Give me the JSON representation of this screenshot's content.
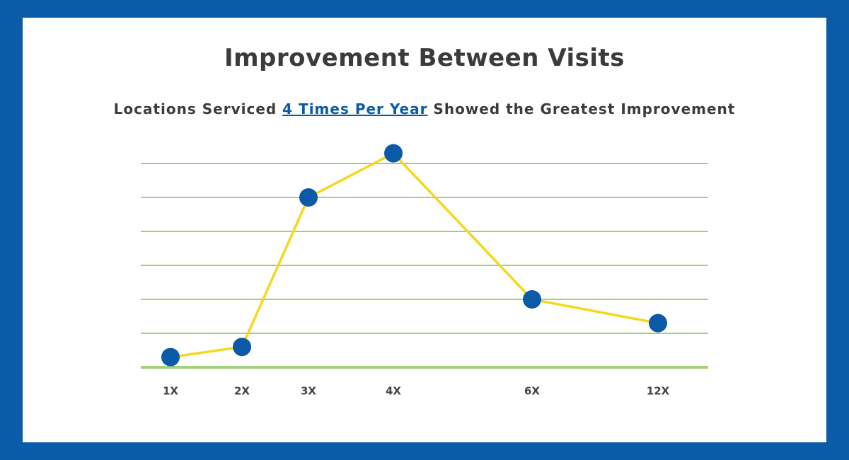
{
  "chart_data": {
    "type": "line",
    "title": "Improvement Between Visits",
    "subtitle": {
      "before": "Locations Serviced",
      "link": "4 Times Per Year",
      "after": "Showed the Greatest Improvement"
    },
    "categories": [
      "1X",
      "2X",
      "3X",
      "4X",
      "6X",
      "12X"
    ],
    "values": [
      0.3,
      0.6,
      5.0,
      6.3,
      2.0,
      1.3
    ],
    "color": "#f5d81c",
    "marker_color": "#0a5aa8",
    "ylim": [
      0,
      6.5
    ],
    "yticks": [
      0,
      1,
      2,
      3,
      4,
      5,
      6
    ],
    "grid": true,
    "grid_color": "#9fd27a"
  }
}
